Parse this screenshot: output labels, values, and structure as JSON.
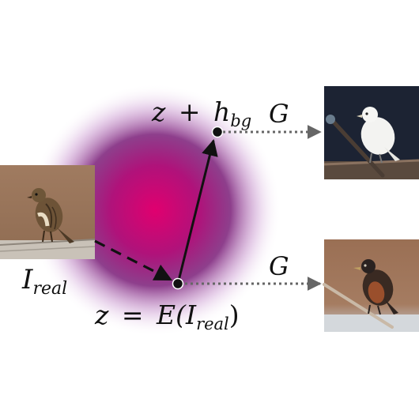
{
  "labels": {
    "input": "I",
    "input_sub": "real",
    "encoded_z": "z",
    "encoded_eq": "=",
    "encoded_fn": "E(",
    "encoded_arg": "I",
    "encoded_arg_sub": "real",
    "encoded_close": ")",
    "shifted_z": "z",
    "shifted_plus": "+",
    "shifted_h": "h",
    "shifted_h_sub": "bg",
    "generator_top": "G",
    "generator_bottom": "G"
  },
  "colors": {
    "latent_center": "#e0006f",
    "latent_mid": "#8a1a78",
    "arrow": "#111111",
    "dotted_arrow": "#666666",
    "dark_background": "#1c2333",
    "warm_background": "#9a7558",
    "sky_background": "#aeb8c4"
  },
  "icons": {
    "input_image": "sparrow-photo-icon",
    "output_top": "white-bird-photo-icon",
    "output_bottom": "starling-photo-icon"
  }
}
